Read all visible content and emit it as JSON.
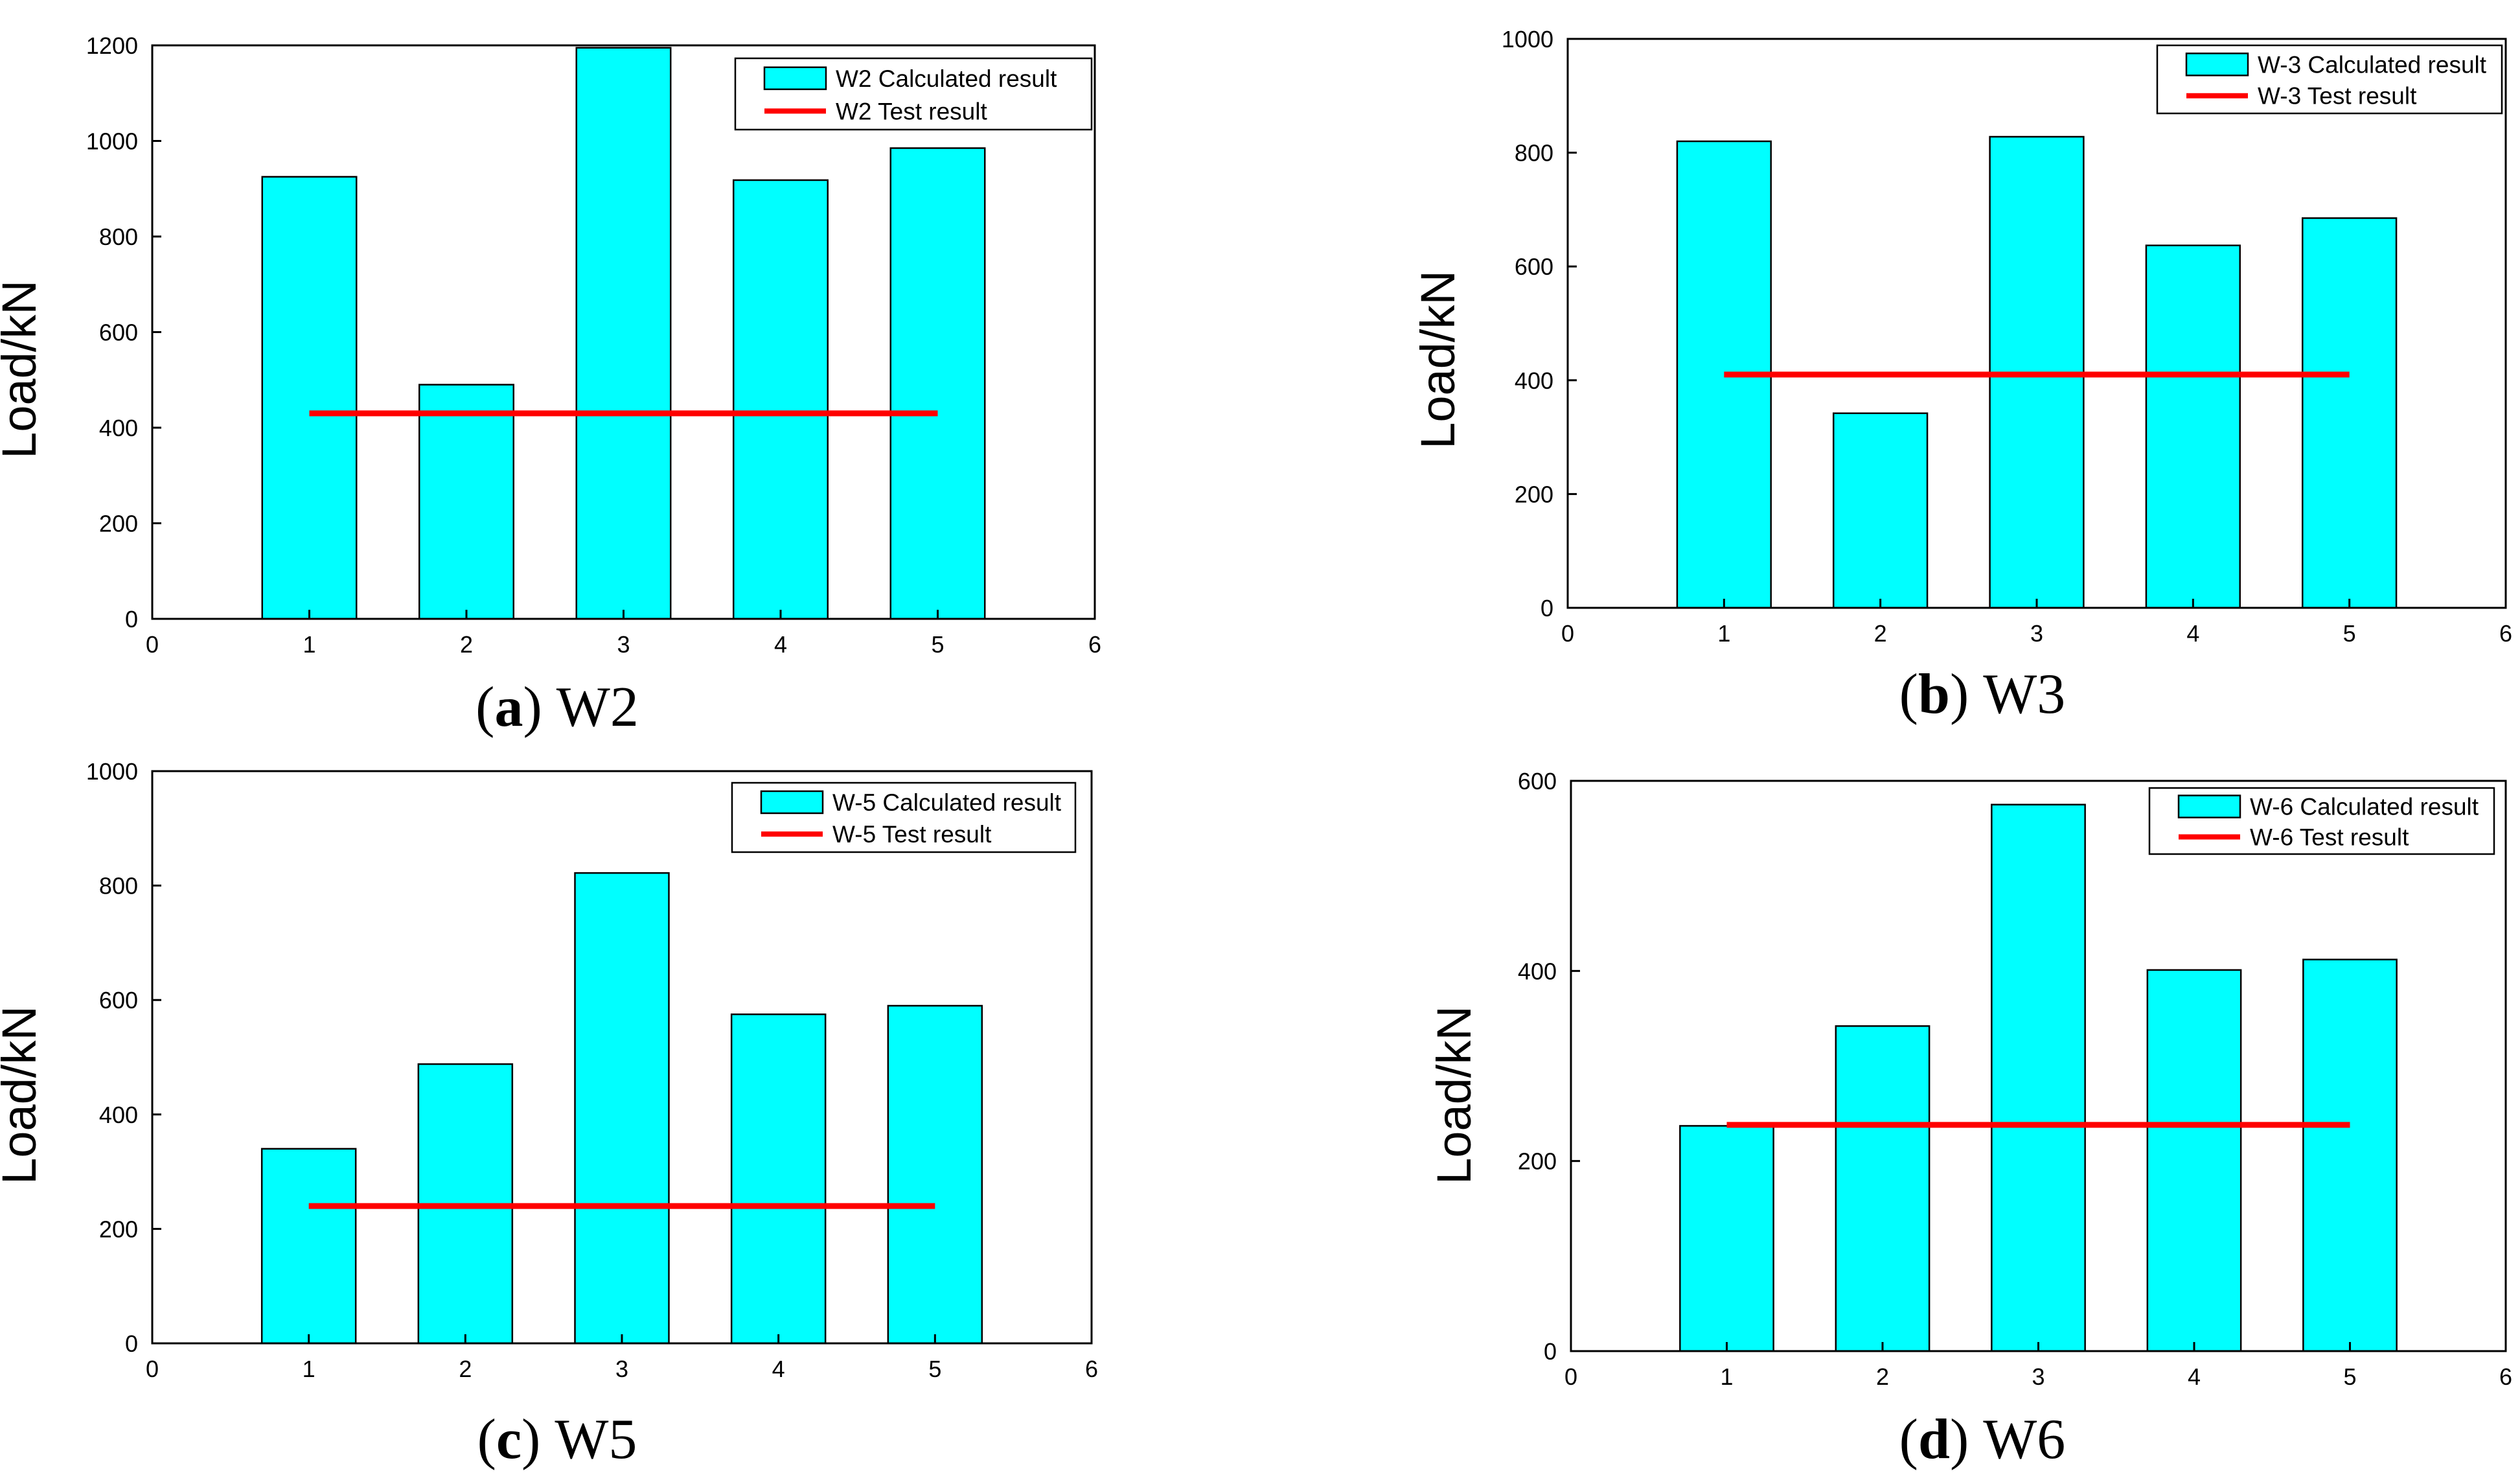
{
  "colors": {
    "bar": "#00ffff",
    "line": "#ff0000",
    "axis": "#000000"
  },
  "chart_data": [
    {
      "type": "bar",
      "caption": {
        "open": "(",
        "letter": "a",
        "close": ")",
        "name": "W2"
      },
      "ylabel": "Load/kN",
      "xlim": [
        0,
        6
      ],
      "ylim": [
        0,
        1200
      ],
      "xticks": [
        "0",
        "1",
        "2",
        "3",
        "4",
        "5",
        "6"
      ],
      "yticks": [
        "0",
        "200",
        "400",
        "600",
        "800",
        "1000",
        "1200"
      ],
      "x": [
        1,
        2,
        3,
        4,
        5
      ],
      "series": [
        {
          "name": "W2 Calculated result",
          "kind": "bar",
          "values": [
            925,
            490,
            1195,
            918,
            985
          ]
        },
        {
          "name": "W2 Test result",
          "kind": "line",
          "values": [
            430,
            430,
            430,
            430,
            430
          ]
        }
      ],
      "legend": "top-right",
      "grid": false
    },
    {
      "type": "bar",
      "caption": {
        "open": "(",
        "letter": "b",
        "close": ")",
        "name": "W3"
      },
      "ylabel": "Load/kN",
      "xlim": [
        0,
        6
      ],
      "ylim": [
        0,
        1000
      ],
      "xticks": [
        "0",
        "1",
        "2",
        "3",
        "4",
        "5",
        "6"
      ],
      "yticks": [
        "0",
        "200",
        "400",
        "600",
        "800",
        "1000"
      ],
      "x": [
        1,
        2,
        3,
        4,
        5
      ],
      "series": [
        {
          "name": "W-3 Calculated result",
          "kind": "bar",
          "values": [
            820,
            342,
            828,
            637,
            685
          ]
        },
        {
          "name": "W-3 Test result",
          "kind": "line",
          "values": [
            410,
            410,
            410,
            410,
            410
          ]
        }
      ],
      "legend": "top-right",
      "grid": false
    },
    {
      "type": "bar",
      "caption": {
        "open": "(",
        "letter": "c",
        "close": ")",
        "name": "W5"
      },
      "ylabel": "Load/kN",
      "xlim": [
        0,
        6
      ],
      "ylim": [
        0,
        1000
      ],
      "xticks": [
        "0",
        "1",
        "2",
        "3",
        "4",
        "5",
        "6"
      ],
      "yticks": [
        "0",
        "200",
        "400",
        "600",
        "800",
        "1000"
      ],
      "x": [
        1,
        2,
        3,
        4,
        5
      ],
      "series": [
        {
          "name": "W-5 Calculated result",
          "kind": "bar",
          "values": [
            340,
            488,
            822,
            575,
            590
          ]
        },
        {
          "name": "W-5 Test result",
          "kind": "line",
          "values": [
            240,
            240,
            240,
            240,
            240
          ]
        }
      ],
      "legend": "top-right",
      "grid": false
    },
    {
      "type": "bar",
      "caption": {
        "open": "(",
        "letter": "d",
        "close": ")",
        "name": "W6"
      },
      "ylabel": "Load/kN",
      "xlim": [
        0,
        6
      ],
      "ylim": [
        0,
        600
      ],
      "xticks": [
        "0",
        "1",
        "2",
        "3",
        "4",
        "5",
        "6"
      ],
      "yticks": [
        "0",
        "200",
        "400",
        "600"
      ],
      "x": [
        1,
        2,
        3,
        4,
        5
      ],
      "series": [
        {
          "name": "W-6 Calculated result",
          "kind": "bar",
          "values": [
            237,
            342,
            575,
            401,
            412
          ]
        },
        {
          "name": "W-6 Test result",
          "kind": "line",
          "values": [
            238,
            238,
            238,
            238,
            238
          ]
        }
      ],
      "legend": "top-right",
      "grid": false
    }
  ]
}
